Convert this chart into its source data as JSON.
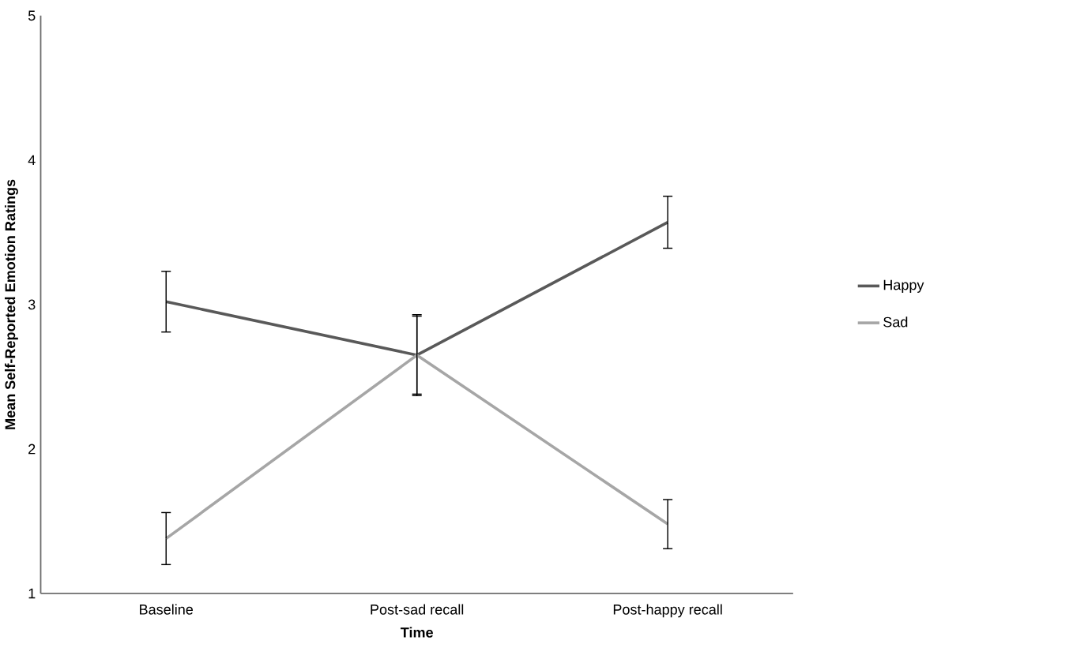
{
  "chart_data": {
    "type": "line",
    "xlabel": "Time",
    "ylabel": "Mean Self-Reported Emotion Ratings",
    "categories": [
      "Baseline",
      "Post-sad recall",
      "Post-happy recall"
    ],
    "series": [
      {
        "name": "Happy",
        "color": "#595959",
        "values": [
          3.02,
          2.65,
          3.57
        ],
        "errors": [
          0.21,
          0.28,
          0.18
        ]
      },
      {
        "name": "Sad",
        "color": "#a6a6a6",
        "values": [
          1.38,
          2.65,
          1.48
        ],
        "errors": [
          0.18,
          0.27,
          0.17
        ]
      }
    ],
    "ylim": [
      1,
      5
    ],
    "yticks": [
      1,
      2,
      3,
      4,
      5
    ],
    "grid": false,
    "legend": "right"
  }
}
